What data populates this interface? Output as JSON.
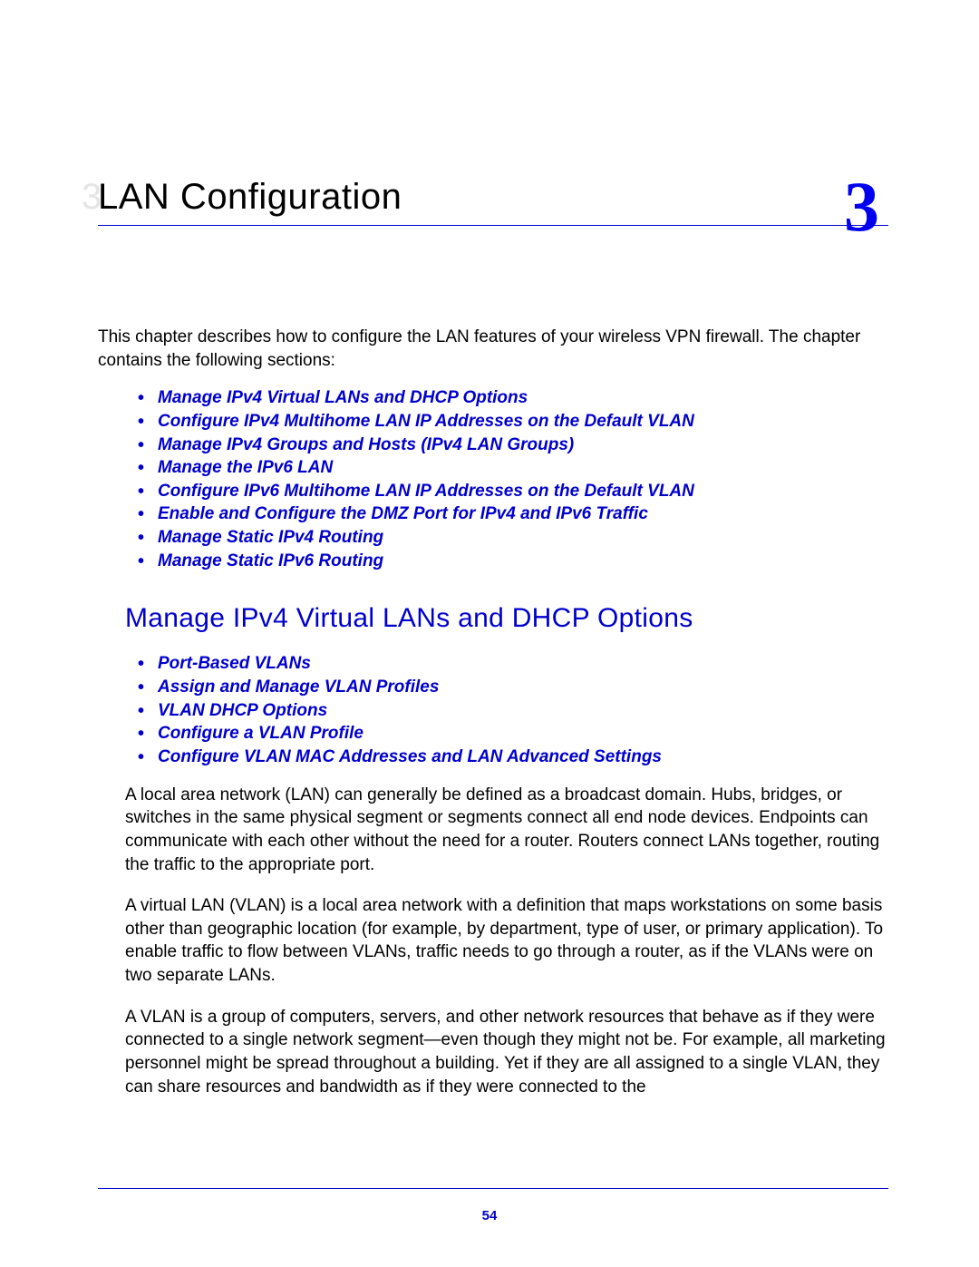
{
  "chapter": {
    "title": "LAN Configuration",
    "ghost_label": "3.",
    "number": "3"
  },
  "intro": "This chapter describes how to configure the LAN features of your wireless VPN firewall. The chapter contains the following sections:",
  "toc": [
    "Manage IPv4 Virtual LANs and DHCP Options",
    "Configure IPv4 Multihome LAN IP Addresses on the Default VLAN",
    "Manage IPv4 Groups and Hosts (IPv4 LAN Groups)",
    "Manage the IPv6 LAN",
    "Configure IPv6 Multihome LAN IP Addresses on the Default VLAN",
    "Enable and Configure the DMZ Port for IPv4 and IPv6 Traffic",
    "Manage Static IPv4 Routing",
    "Manage Static IPv6 Routing"
  ],
  "section_heading": "Manage IPv4 Virtual LANs and DHCP Options",
  "sub_toc": [
    "Port-Based VLANs",
    "Assign and Manage VLAN Profiles",
    "VLAN DHCP Options",
    "Configure a VLAN Profile",
    "Configure VLAN MAC Addresses and LAN Advanced Settings"
  ],
  "paragraphs": [
    "A local area network (LAN) can generally be defined as a broadcast domain. Hubs, bridges, or switches in the same physical segment or segments connect all end node devices. Endpoints can communicate with each other without the need for a router. Routers connect LANs together, routing the traffic to the appropriate port.",
    "A virtual LAN (VLAN) is a local area network with a definition that maps workstations on some basis other than geographic location (for example, by department, type of user, or primary application). To enable traffic to flow between VLANs, traffic needs to go through a router, as if the VLANs were on two separate LANs.",
    "A VLAN is a group of computers, servers, and other network resources that behave as if they were connected to a single network segment—even though they might not be. For example, all marketing personnel might be spread throughout a building. Yet if they are all assigned to a single VLAN, they can share resources and bandwidth as if they were connected to the"
  ],
  "page_number": "54",
  "colors": {
    "link_blue": "#0000cc",
    "number_blue": "#0000ee",
    "text_black": "#000000",
    "ghost_gray": "#e5e5e5",
    "background": "#ffffff"
  },
  "typography": {
    "title_fontsize": 40,
    "number_fontsize": 78,
    "heading_fontsize": 30,
    "body_fontsize": 19,
    "pagenum_fontsize": 15
  }
}
